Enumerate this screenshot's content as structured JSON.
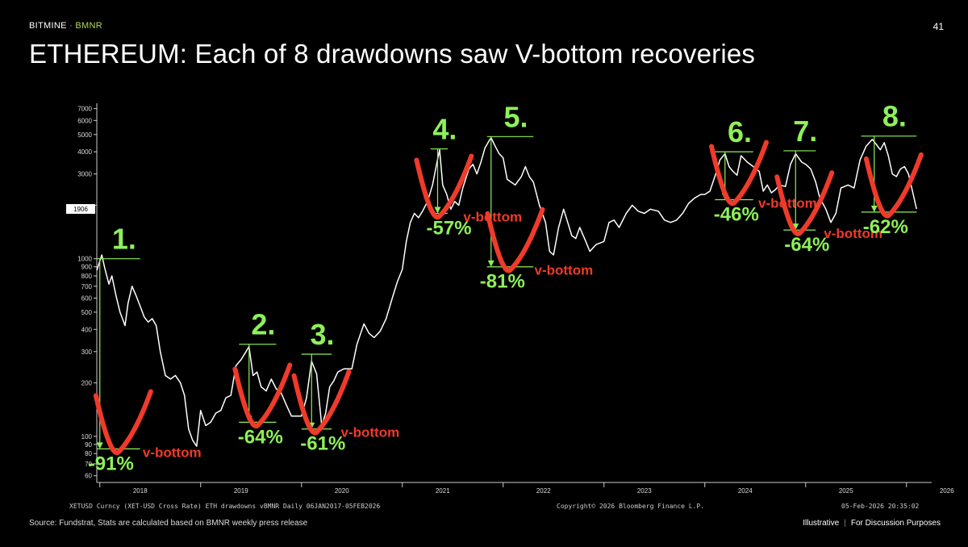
{
  "header": {
    "brand": "BITMINE",
    "separator": "·",
    "ticker": "BMNR",
    "page_number": "41"
  },
  "title": "ETHEREUM: Each of 8 drawdowns saw V-bottom recoveries",
  "footer": {
    "source": "Source: Fundstrat, Stats are calculated based on BMNR weekly press release",
    "right_a": "Illustrative",
    "right_sep": "|",
    "right_b": "For Discussion Purposes"
  },
  "chart_footer": {
    "left": "XETUSD Curncy (XET-USD Cross Rate) ETH drawdowns vBMNR Daily 06JAN2017-05FEB2026",
    "center": "Copyright© 2026 Bloomberg Finance L.P.",
    "right": "05-Feb-2026 20:35:02"
  },
  "colors": {
    "annotation_green": "#8ef05a",
    "annotation_red": "#f03a2a",
    "price_line": "#ffffff",
    "axis": "#cccccc"
  },
  "chart_data": {
    "type": "line",
    "yscale": "log",
    "ylim": [
      55,
      7500
    ],
    "y_ticks": [
      60,
      70,
      80,
      90,
      100,
      200,
      300,
      400,
      500,
      600,
      700,
      800,
      900,
      1000,
      2000,
      3000,
      4000,
      5000,
      6000,
      7000
    ],
    "y_tick_labels": [
      "60",
      "70",
      "80",
      "90",
      "100",
      "200",
      "300",
      "400",
      "500",
      "600",
      "700",
      "800",
      "900",
      "1000",
      "",
      "3000",
      "4000",
      "5000",
      "6000",
      "7000"
    ],
    "last_price_label": "1906",
    "x_ticks": [
      "2018",
      "2019",
      "2020",
      "2021",
      "2022",
      "2023",
      "2024",
      "2025",
      "2026"
    ],
    "x_tick_values": [
      2018.0,
      2019.0,
      2020.0,
      2021.0,
      2022.0,
      2023.0,
      2024.0,
      2025.0,
      2026.0
    ],
    "xlim": [
      2017.97,
      2026.25
    ],
    "series": [
      {
        "values": [
          [
            2017.97,
            860
          ],
          [
            2018.02,
            1050
          ],
          [
            2018.05,
            880
          ],
          [
            2018.09,
            720
          ],
          [
            2018.12,
            800
          ],
          [
            2018.16,
            620
          ],
          [
            2018.2,
            500
          ],
          [
            2018.25,
            420
          ],
          [
            2018.28,
            560
          ],
          [
            2018.32,
            700
          ],
          [
            2018.36,
            620
          ],
          [
            2018.4,
            540
          ],
          [
            2018.44,
            470
          ],
          [
            2018.48,
            440
          ],
          [
            2018.52,
            460
          ],
          [
            2018.56,
            420
          ],
          [
            2018.6,
            300
          ],
          [
            2018.65,
            220
          ],
          [
            2018.7,
            210
          ],
          [
            2018.75,
            220
          ],
          [
            2018.8,
            200
          ],
          [
            2018.84,
            170
          ],
          [
            2018.88,
            110
          ],
          [
            2018.92,
            95
          ],
          [
            2018.96,
            88
          ],
          [
            2019.0,
            140
          ],
          [
            2019.05,
            115
          ],
          [
            2019.1,
            120
          ],
          [
            2019.15,
            135
          ],
          [
            2019.2,
            140
          ],
          [
            2019.25,
            165
          ],
          [
            2019.3,
            170
          ],
          [
            2019.35,
            250
          ],
          [
            2019.4,
            270
          ],
          [
            2019.45,
            300
          ],
          [
            2019.48,
            320
          ],
          [
            2019.52,
            220
          ],
          [
            2019.56,
            230
          ],
          [
            2019.6,
            190
          ],
          [
            2019.65,
            180
          ],
          [
            2019.7,
            210
          ],
          [
            2019.75,
            185
          ],
          [
            2019.8,
            175
          ],
          [
            2019.85,
            150
          ],
          [
            2019.9,
            130
          ],
          [
            2019.95,
            130
          ],
          [
            2020.0,
            130
          ],
          [
            2020.05,
            165
          ],
          [
            2020.1,
            265
          ],
          [
            2020.15,
            225
          ],
          [
            2020.2,
            115
          ],
          [
            2020.24,
            135
          ],
          [
            2020.28,
            190
          ],
          [
            2020.32,
            205
          ],
          [
            2020.36,
            230
          ],
          [
            2020.42,
            240
          ],
          [
            2020.5,
            240
          ],
          [
            2020.55,
            330
          ],
          [
            2020.62,
            430
          ],
          [
            2020.67,
            380
          ],
          [
            2020.72,
            360
          ],
          [
            2020.78,
            390
          ],
          [
            2020.84,
            460
          ],
          [
            2020.9,
            600
          ],
          [
            2020.95,
            740
          ],
          [
            2021.0,
            870
          ],
          [
            2021.04,
            1250
          ],
          [
            2021.08,
            1600
          ],
          [
            2021.12,
            1800
          ],
          [
            2021.16,
            1700
          ],
          [
            2021.2,
            1850
          ],
          [
            2021.25,
            2100
          ],
          [
            2021.3,
            2600
          ],
          [
            2021.34,
            3400
          ],
          [
            2021.37,
            4100
          ],
          [
            2021.4,
            2600
          ],
          [
            2021.44,
            2300
          ],
          [
            2021.48,
            1900
          ],
          [
            2021.52,
            2100
          ],
          [
            2021.56,
            2000
          ],
          [
            2021.6,
            2500
          ],
          [
            2021.66,
            3200
          ],
          [
            2021.7,
            3400
          ],
          [
            2021.74,
            3000
          ],
          [
            2021.78,
            3500
          ],
          [
            2021.82,
            4200
          ],
          [
            2021.86,
            4600
          ],
          [
            2021.88,
            4800
          ],
          [
            2021.92,
            4300
          ],
          [
            2021.96,
            3900
          ],
          [
            2022.0,
            3700
          ],
          [
            2022.04,
            2800
          ],
          [
            2022.08,
            2700
          ],
          [
            2022.12,
            2600
          ],
          [
            2022.18,
            2900
          ],
          [
            2022.22,
            3300
          ],
          [
            2022.26,
            2900
          ],
          [
            2022.3,
            2700
          ],
          [
            2022.36,
            2000
          ],
          [
            2022.42,
            1600
          ],
          [
            2022.46,
            1100
          ],
          [
            2022.5,
            1050
          ],
          [
            2022.55,
            1500
          ],
          [
            2022.6,
            1900
          ],
          [
            2022.64,
            1600
          ],
          [
            2022.68,
            1350
          ],
          [
            2022.72,
            1300
          ],
          [
            2022.76,
            1500
          ],
          [
            2022.82,
            1250
          ],
          [
            2022.86,
            1100
          ],
          [
            2022.92,
            1200
          ],
          [
            2023.0,
            1250
          ],
          [
            2023.05,
            1600
          ],
          [
            2023.1,
            1650
          ],
          [
            2023.15,
            1500
          ],
          [
            2023.22,
            1800
          ],
          [
            2023.28,
            2000
          ],
          [
            2023.34,
            1850
          ],
          [
            2023.4,
            1800
          ],
          [
            2023.46,
            1900
          ],
          [
            2023.54,
            1850
          ],
          [
            2023.6,
            1650
          ],
          [
            2023.66,
            1600
          ],
          [
            2023.72,
            1650
          ],
          [
            2023.78,
            1800
          ],
          [
            2023.84,
            2050
          ],
          [
            2023.9,
            2200
          ],
          [
            2023.96,
            2300
          ],
          [
            2024.0,
            2300
          ],
          [
            2024.05,
            2400
          ],
          [
            2024.1,
            2900
          ],
          [
            2024.15,
            3600
          ],
          [
            2024.2,
            3900
          ],
          [
            2024.24,
            3300
          ],
          [
            2024.28,
            3100
          ],
          [
            2024.32,
            2950
          ],
          [
            2024.36,
            3800
          ],
          [
            2024.42,
            3500
          ],
          [
            2024.48,
            3300
          ],
          [
            2024.54,
            3100
          ],
          [
            2024.58,
            2400
          ],
          [
            2024.62,
            2600
          ],
          [
            2024.66,
            2350
          ],
          [
            2024.7,
            2450
          ],
          [
            2024.74,
            2600
          ],
          [
            2024.8,
            2550
          ],
          [
            2024.85,
            3400
          ],
          [
            2024.9,
            3900
          ],
          [
            2024.96,
            3500
          ],
          [
            2025.0,
            3400
          ],
          [
            2025.05,
            3200
          ],
          [
            2025.1,
            2700
          ],
          [
            2025.14,
            2200
          ],
          [
            2025.2,
            1900
          ],
          [
            2025.25,
            1600
          ],
          [
            2025.3,
            1800
          ],
          [
            2025.35,
            2500
          ],
          [
            2025.42,
            2600
          ],
          [
            2025.48,
            2500
          ],
          [
            2025.54,
            3600
          ],
          [
            2025.6,
            4300
          ],
          [
            2025.66,
            4700
          ],
          [
            2025.7,
            4400
          ],
          [
            2025.74,
            4100
          ],
          [
            2025.78,
            4500
          ],
          [
            2025.82,
            3800
          ],
          [
            2025.86,
            3000
          ],
          [
            2025.9,
            2900
          ],
          [
            2025.94,
            3200
          ],
          [
            2025.98,
            3300
          ],
          [
            2026.02,
            3000
          ],
          [
            2026.06,
            2400
          ],
          [
            2026.1,
            1906
          ]
        ]
      }
    ],
    "annotations": [
      {
        "label": "1.",
        "drawdown": "-91%",
        "peak": 1000,
        "trough": 85,
        "x_start": 2017.97,
        "x_end": 2018.4,
        "x_arrow": 2018.0,
        "note": "v-bottom"
      },
      {
        "label": "2.",
        "drawdown": "-64%",
        "peak": 330,
        "trough": 120,
        "x_start": 2019.38,
        "x_end": 2019.75,
        "x_arrow": 2019.48,
        "note": ""
      },
      {
        "label": "3.",
        "drawdown": "-61%",
        "peak": 290,
        "trough": 110,
        "x_start": 2020.0,
        "x_end": 2020.3,
        "x_arrow": 2020.1,
        "note": "v-bottom"
      },
      {
        "label": "4.",
        "drawdown": "-57%",
        "peak": 4150,
        "trough": 1800,
        "x_start": 2021.28,
        "x_end": 2021.45,
        "x_arrow": 2021.35,
        "note": "v-bottom"
      },
      {
        "label": "5.",
        "drawdown": "-81%",
        "peak": 4870,
        "trough": 900,
        "x_start": 2021.84,
        "x_end": 2022.3,
        "x_arrow": 2021.88,
        "note": "v-bottom"
      },
      {
        "label": "6.",
        "drawdown": "-46%",
        "peak": 4000,
        "trough": 2150,
        "x_start": 2024.1,
        "x_end": 2024.48,
        "x_arrow": 2024.2,
        "note": "v-bottom"
      },
      {
        "label": "7.",
        "drawdown": "-64%",
        "peak": 4050,
        "trough": 1450,
        "x_start": 2024.78,
        "x_end": 2025.1,
        "x_arrow": 2024.9,
        "note": "v-bottom"
      },
      {
        "label": "8.",
        "drawdown": "-62%",
        "peak": 4900,
        "trough": 1830,
        "x_start": 2025.55,
        "x_end": 2026.1,
        "x_arrow": 2025.68,
        "note": ""
      }
    ]
  }
}
